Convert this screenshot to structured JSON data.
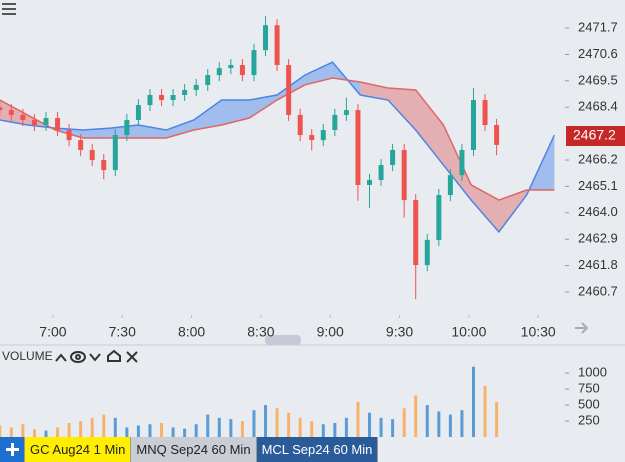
{
  "chart_data": [
    {
      "type": "candlestick",
      "x": [
        397,
        402,
        407,
        412,
        417,
        422,
        427,
        432,
        437,
        442,
        447,
        452,
        457,
        462,
        467,
        472,
        477,
        482,
        487,
        492,
        497,
        502,
        507,
        512,
        517,
        522,
        527,
        532,
        537,
        542,
        547,
        552,
        557,
        562,
        567,
        572,
        577,
        582,
        587,
        592,
        597,
        602,
        607,
        612
      ],
      "open": [
        2468.4,
        2468.28,
        2468.08,
        2467.87,
        2467.66,
        2467.95,
        2467.45,
        2467.03,
        2466.62,
        2466.2,
        2465.78,
        2467.24,
        2467.87,
        2468.49,
        2468.91,
        2468.7,
        2468.91,
        2469.12,
        2469.33,
        2469.74,
        2470.03,
        2470.16,
        2469.74,
        2470.78,
        2471.82,
        2470.16,
        2468.08,
        2467.24,
        2467.03,
        2467.45,
        2468.08,
        2468.28,
        2465.16,
        2465.37,
        2465.99,
        2466.62,
        2464.53,
        2461.82,
        2462.87,
        2464.74,
        2465.57,
        2466.62,
        2468.7,
        2467.66
      ],
      "high": [
        2468.65,
        2468.53,
        2468.33,
        2468.12,
        2468.2,
        2468.2,
        2467.7,
        2467.28,
        2466.87,
        2466.45,
        2467.49,
        2468.12,
        2468.74,
        2469.16,
        2469.16,
        2469.16,
        2469.37,
        2469.58,
        2469.99,
        2470.28,
        2470.41,
        2470.41,
        2471.03,
        2472.2,
        2472.07,
        2470.41,
        2468.33,
        2467.49,
        2467.7,
        2468.33,
        2468.8,
        2468.53,
        2465.62,
        2466.24,
        2466.87,
        2466.87,
        2464.78,
        2463.12,
        2464.99,
        2465.82,
        2466.87,
        2469.2,
        2468.95,
        2467.91
      ],
      "low": [
        2468.03,
        2467.83,
        2467.62,
        2467.41,
        2467.41,
        2467.2,
        2466.78,
        2466.37,
        2465.95,
        2465.4,
        2465.53,
        2466.99,
        2467.62,
        2468.24,
        2468.45,
        2468.45,
        2468.66,
        2468.87,
        2469.08,
        2469.49,
        2469.78,
        2469.49,
        2469.49,
        2470.53,
        2469.91,
        2467.83,
        2466.99,
        2466.6,
        2466.78,
        2467.2,
        2467.83,
        2464.5,
        2464.2,
        2465.12,
        2465.74,
        2463.8,
        2460.4,
        2461.57,
        2462.62,
        2464.49,
        2465.32,
        2466.37,
        2467.41,
        2466.4
      ],
      "close": [
        2468.28,
        2468.08,
        2467.87,
        2467.66,
        2467.95,
        2467.45,
        2467.03,
        2466.62,
        2466.2,
        2465.78,
        2467.24,
        2467.87,
        2468.49,
        2468.91,
        2468.7,
        2468.91,
        2469.12,
        2469.33,
        2469.74,
        2470.03,
        2470.16,
        2469.74,
        2470.78,
        2471.82,
        2470.16,
        2468.08,
        2467.24,
        2467.03,
        2467.45,
        2468.08,
        2468.28,
        2465.16,
        2465.37,
        2465.99,
        2466.62,
        2464.53,
        2461.82,
        2462.87,
        2464.74,
        2465.57,
        2466.62,
        2468.7,
        2467.66,
        2466.83
      ],
      "up_color": "#26a69a",
      "down_color": "#ef5350",
      "cloud": {
        "x": [
          397,
          409,
          421,
          433,
          445,
          457,
          469,
          481,
          493,
          505,
          517,
          529,
          541,
          553,
          565,
          577,
          589,
          601,
          613,
          625,
          637
        ],
        "span_a": [
          2467.87,
          2467.66,
          2467.53,
          2467.45,
          2467.53,
          2467.66,
          2467.45,
          2467.87,
          2468.7,
          2468.7,
          2468.91,
          2469.74,
          2470.28,
          2468.91,
          2468.7,
          2467.45,
          2465.99,
          2464.53,
          2463.2,
          2464.74,
          2467.24
        ],
        "span_b": [
          2468.7,
          2468.08,
          2467.45,
          2467.12,
          2467.12,
          2467.12,
          2467.12,
          2467.45,
          2467.66,
          2467.95,
          2468.7,
          2469.33,
          2469.62,
          2469.45,
          2469.2,
          2469.12,
          2467.66,
          2465.16,
          2464.53,
          2464.95,
          2464.95
        ],
        "a_color": "#4a86e8",
        "b_color": "#e06666"
      },
      "last_price": 2467.2,
      "last_price_color": "#c62828",
      "xlim": [
        397.1,
        641.6
      ],
      "xticks": [
        {
          "value": 420,
          "label": "7:00"
        },
        {
          "value": 450,
          "label": "7:30"
        },
        {
          "value": 480,
          "label": "8:00"
        },
        {
          "value": 510,
          "label": "8:30"
        },
        {
          "value": 540,
          "label": "9:00"
        },
        {
          "value": 570,
          "label": "9:30"
        },
        {
          "value": 600,
          "label": "10:00"
        },
        {
          "value": 630,
          "label": "10:30"
        }
      ],
      "ylim": [
        2459.74,
        2472.87
      ],
      "yticks": [
        2471.7,
        2470.6,
        2469.5,
        2468.4,
        2466.2,
        2465.1,
        {
          "value": 2464,
          "label": "2464.0"
        },
        2462.9,
        2461.8,
        2460.7
      ]
    },
    {
      "type": "bar",
      "title": "VOLUME",
      "x": [
        397,
        402,
        407,
        412,
        417,
        422,
        427,
        432,
        437,
        442,
        447,
        452,
        457,
        462,
        467,
        472,
        477,
        482,
        487,
        492,
        497,
        502,
        507,
        512,
        517,
        522,
        527,
        532,
        537,
        542,
        547,
        552,
        557,
        562,
        567,
        572,
        577,
        582,
        587,
        592,
        597,
        602,
        607,
        612
      ],
      "values": [
        180,
        150,
        200,
        120,
        100,
        150,
        220,
        250,
        300,
        350,
        300,
        150,
        180,
        200,
        220,
        150,
        130,
        200,
        350,
        300,
        280,
        250,
        420,
        500,
        450,
        380,
        300,
        250,
        200,
        220,
        300,
        550,
        380,
        300,
        280,
        450,
        650,
        500,
        400,
        350,
        420,
        1100,
        800,
        550
      ],
      "up_color": "#5b9bd5",
      "down_color": "#f6b26b",
      "xlim": [
        397.1,
        641.6
      ],
      "ylim": [
        0,
        1440
      ],
      "yticks": [
        250,
        500,
        750,
        1000
      ]
    }
  ],
  "tabs": [
    "GC Aug24 1 Min",
    "MNQ Sep24 60 Min",
    "MCL Sep24 60 Min"
  ]
}
